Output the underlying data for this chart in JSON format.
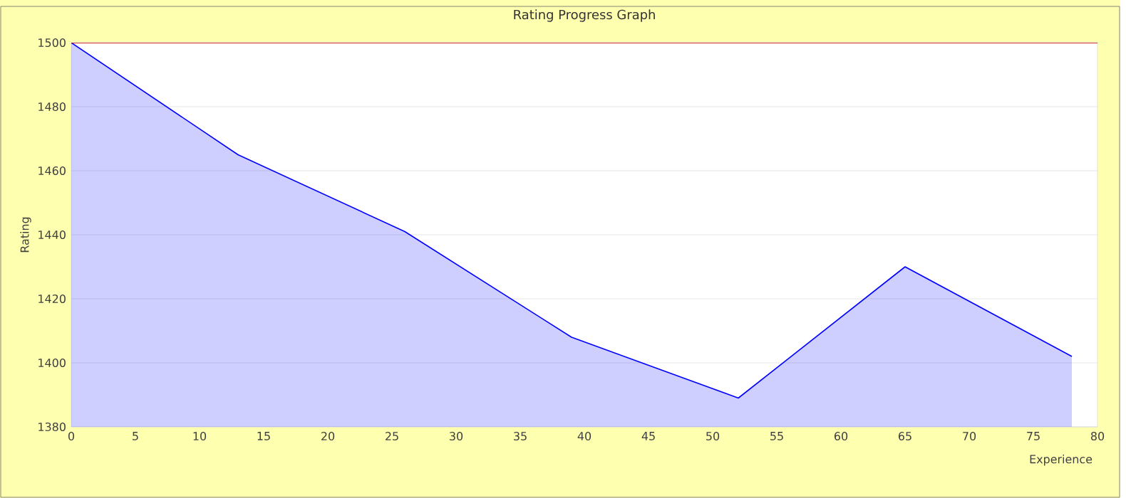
{
  "chart_data": {
    "type": "area",
    "title": "Rating Progress Graph",
    "xlabel": "Experience",
    "ylabel": "Rating",
    "x": [
      0,
      13,
      26,
      39,
      52,
      65,
      78
    ],
    "series": [
      {
        "color": "#0000ff",
        "values": [
          1500,
          1465,
          1441,
          1408,
          1389,
          1430,
          1402
        ]
      }
    ],
    "xlim": [
      0,
      80
    ],
    "xticks": [
      0,
      5,
      10,
      15,
      20,
      25,
      30,
      35,
      40,
      45,
      50,
      55,
      60,
      65,
      70,
      75,
      80
    ],
    "ylim": [
      1380,
      1500
    ],
    "yticks": [
      1380,
      1400,
      1420,
      1440,
      1460,
      1480,
      1500
    ],
    "grid": "y",
    "marker": "none",
    "line_style": "solid",
    "ref_lines": [
      {
        "axis": "y",
        "value": 1500,
        "color": "#cc0000"
      }
    ]
  }
}
